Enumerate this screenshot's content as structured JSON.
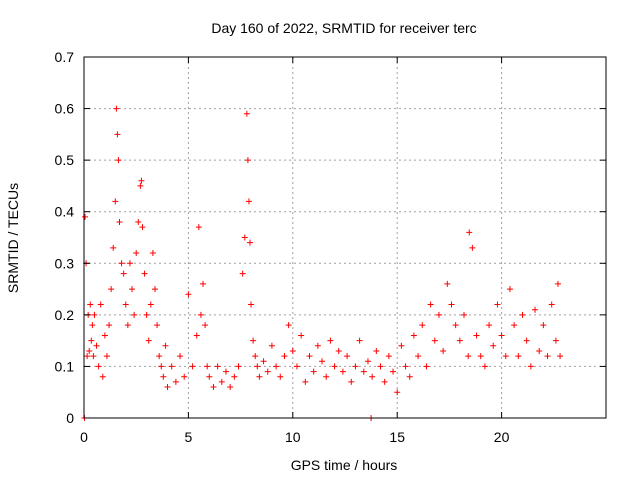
{
  "chart_data": {
    "type": "scatter",
    "title": "Day 160 of 2022, SRMTID for receiver terc",
    "xlabel": "GPS time / hours",
    "ylabel": "SRMTID / TECUs",
    "xlim": [
      0,
      25
    ],
    "ylim": [
      0,
      0.7
    ],
    "xticks": [
      0,
      5,
      10,
      15,
      20
    ],
    "xtick_labels": [
      "0",
      "5",
      "10",
      "15",
      "20"
    ],
    "yticks": [
      0,
      0.1,
      0.2,
      0.3,
      0.4,
      0.5,
      0.6,
      0.7
    ],
    "ytick_labels": [
      "0",
      "0.1",
      "0.2",
      "0.3",
      "0.4",
      "0.5",
      "0.6",
      "0.7"
    ],
    "grid": true,
    "marker": "plus",
    "series": [
      {
        "name": "SRMTID",
        "color": "#ff0000",
        "x": [
          0.02,
          0.05,
          0.1,
          0.15,
          0.2,
          0.25,
          0.3,
          0.35,
          0.4,
          0.45,
          0.5,
          0.6,
          0.7,
          0.8,
          0.9,
          1.0,
          1.1,
          1.2,
          1.3,
          1.4,
          1.5,
          1.55,
          1.6,
          1.65,
          1.7,
          1.8,
          1.9,
          2.0,
          2.1,
          2.2,
          2.3,
          2.4,
          2.5,
          2.6,
          2.7,
          2.75,
          2.8,
          2.9,
          3.0,
          3.1,
          3.2,
          3.3,
          3.4,
          3.5,
          3.6,
          3.7,
          3.8,
          3.9,
          4.0,
          4.2,
          4.4,
          4.6,
          4.8,
          5.0,
          5.2,
          5.4,
          5.5,
          5.6,
          5.7,
          5.8,
          5.9,
          6.0,
          6.2,
          6.4,
          6.6,
          6.8,
          7.0,
          7.2,
          7.4,
          7.6,
          7.7,
          7.8,
          7.85,
          7.9,
          7.95,
          8.0,
          8.1,
          8.2,
          8.3,
          8.4,
          8.6,
          8.8,
          9.0,
          9.2,
          9.4,
          9.6,
          9.8,
          10.0,
          10.2,
          10.4,
          10.6,
          10.8,
          11.0,
          11.2,
          11.4,
          11.6,
          11.8,
          12.0,
          12.2,
          12.4,
          12.6,
          12.8,
          13.0,
          13.2,
          13.4,
          13.6,
          13.75,
          13.8,
          14.0,
          14.2,
          14.4,
          14.6,
          14.8,
          15.0,
          15.2,
          15.4,
          15.6,
          15.8,
          16.0,
          16.2,
          16.4,
          16.6,
          16.8,
          17.0,
          17.2,
          17.4,
          17.6,
          17.8,
          18.0,
          18.2,
          18.4,
          18.45,
          18.6,
          18.8,
          19.0,
          19.2,
          19.4,
          19.6,
          19.8,
          20.0,
          20.2,
          20.4,
          20.6,
          20.8,
          21.0,
          21.2,
          21.4,
          21.6,
          21.8,
          22.0,
          22.2,
          22.4,
          22.6,
          22.7,
          22.8
        ],
        "y": [
          0.0,
          0.39,
          0.3,
          0.12,
          0.2,
          0.13,
          0.22,
          0.15,
          0.18,
          0.12,
          0.2,
          0.14,
          0.1,
          0.22,
          0.08,
          0.16,
          0.12,
          0.18,
          0.25,
          0.33,
          0.42,
          0.6,
          0.55,
          0.5,
          0.38,
          0.3,
          0.28,
          0.22,
          0.18,
          0.3,
          0.25,
          0.2,
          0.32,
          0.38,
          0.45,
          0.46,
          0.37,
          0.28,
          0.2,
          0.15,
          0.22,
          0.32,
          0.25,
          0.18,
          0.12,
          0.1,
          0.08,
          0.14,
          0.06,
          0.1,
          0.07,
          0.12,
          0.08,
          0.24,
          0.1,
          0.16,
          0.37,
          0.2,
          0.26,
          0.18,
          0.1,
          0.08,
          0.06,
          0.1,
          0.07,
          0.09,
          0.06,
          0.08,
          0.1,
          0.28,
          0.35,
          0.59,
          0.5,
          0.42,
          0.34,
          0.22,
          0.15,
          0.12,
          0.1,
          0.08,
          0.11,
          0.09,
          0.14,
          0.1,
          0.08,
          0.12,
          0.18,
          0.13,
          0.1,
          0.16,
          0.07,
          0.12,
          0.09,
          0.14,
          0.11,
          0.08,
          0.15,
          0.1,
          0.13,
          0.09,
          0.12,
          0.07,
          0.1,
          0.15,
          0.09,
          0.11,
          0.0,
          0.08,
          0.13,
          0.1,
          0.07,
          0.12,
          0.09,
          0.05,
          0.14,
          0.1,
          0.08,
          0.16,
          0.12,
          0.18,
          0.1,
          0.22,
          0.15,
          0.2,
          0.13,
          0.26,
          0.22,
          0.18,
          0.15,
          0.2,
          0.12,
          0.36,
          0.33,
          0.16,
          0.12,
          0.1,
          0.18,
          0.14,
          0.22,
          0.16,
          0.12,
          0.25,
          0.18,
          0.12,
          0.2,
          0.15,
          0.1,
          0.21,
          0.13,
          0.18,
          0.12,
          0.22,
          0.15,
          0.26,
          0.12
        ]
      }
    ]
  }
}
